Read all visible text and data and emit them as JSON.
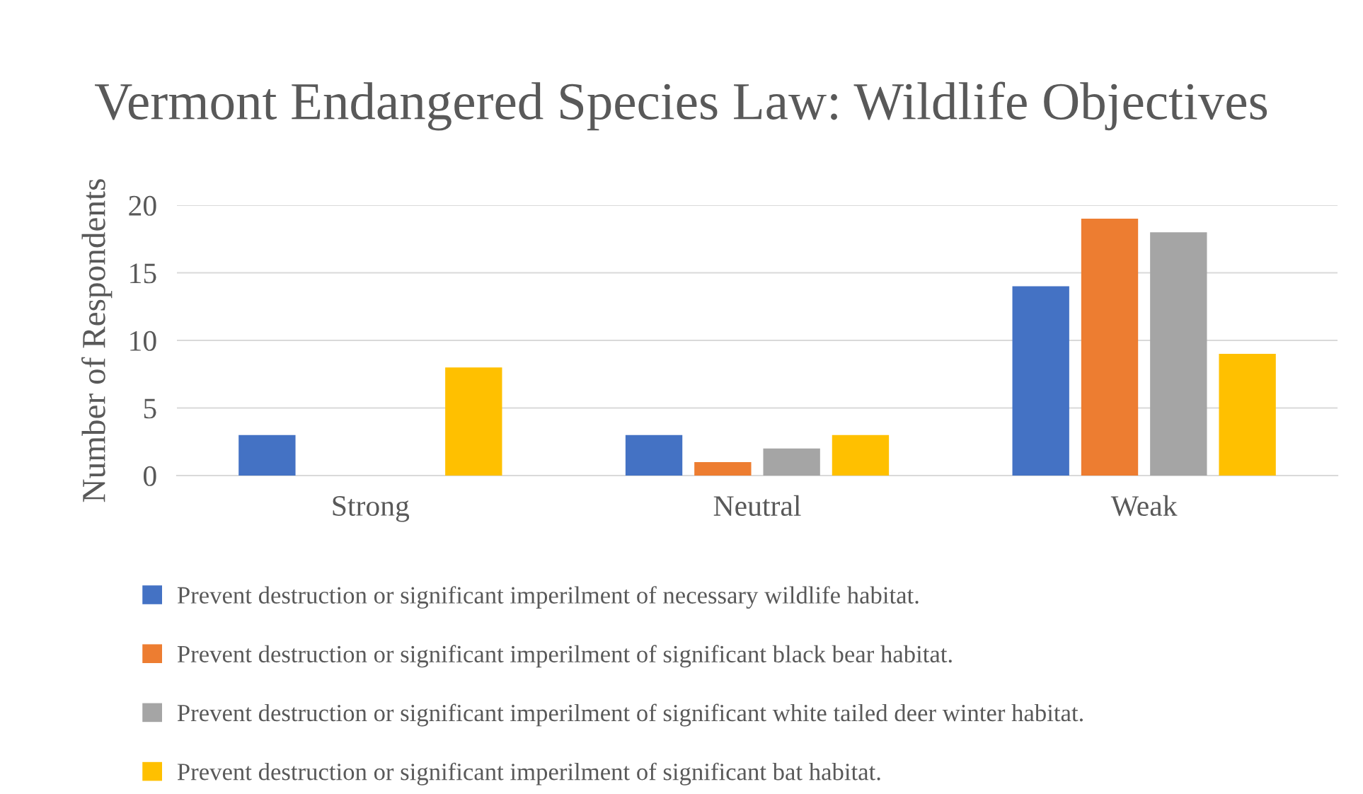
{
  "chart_data": {
    "type": "bar",
    "title": "Vermont Endangered Species Law: Wildlife Objectives",
    "ylabel": "Number of Respondents",
    "categories": [
      "Strong",
      "Neutral",
      "Weak"
    ],
    "series": [
      {
        "name": "Prevent destruction or significant imperilment of necessary wildlife habitat.",
        "color": "#4472c4",
        "values": [
          3,
          3,
          14
        ]
      },
      {
        "name": "Prevent destruction or significant imperilment of significant black bear habitat.",
        "color": "#ed7d31",
        "values": [
          0,
          1,
          19
        ]
      },
      {
        "name": "Prevent destruction or significant imperilment of significant white tailed deer winter habitat.",
        "color": "#a5a5a5",
        "values": [
          0,
          2,
          18
        ]
      },
      {
        "name": "Prevent destruction or significant imperilment of significant bat habitat.",
        "color": "#ffc000",
        "values": [
          8,
          3,
          9
        ]
      }
    ],
    "ylim": [
      0,
      20
    ],
    "yticks": [
      0,
      5,
      10,
      15,
      20
    ],
    "grid": "y",
    "legend": "bottom"
  }
}
